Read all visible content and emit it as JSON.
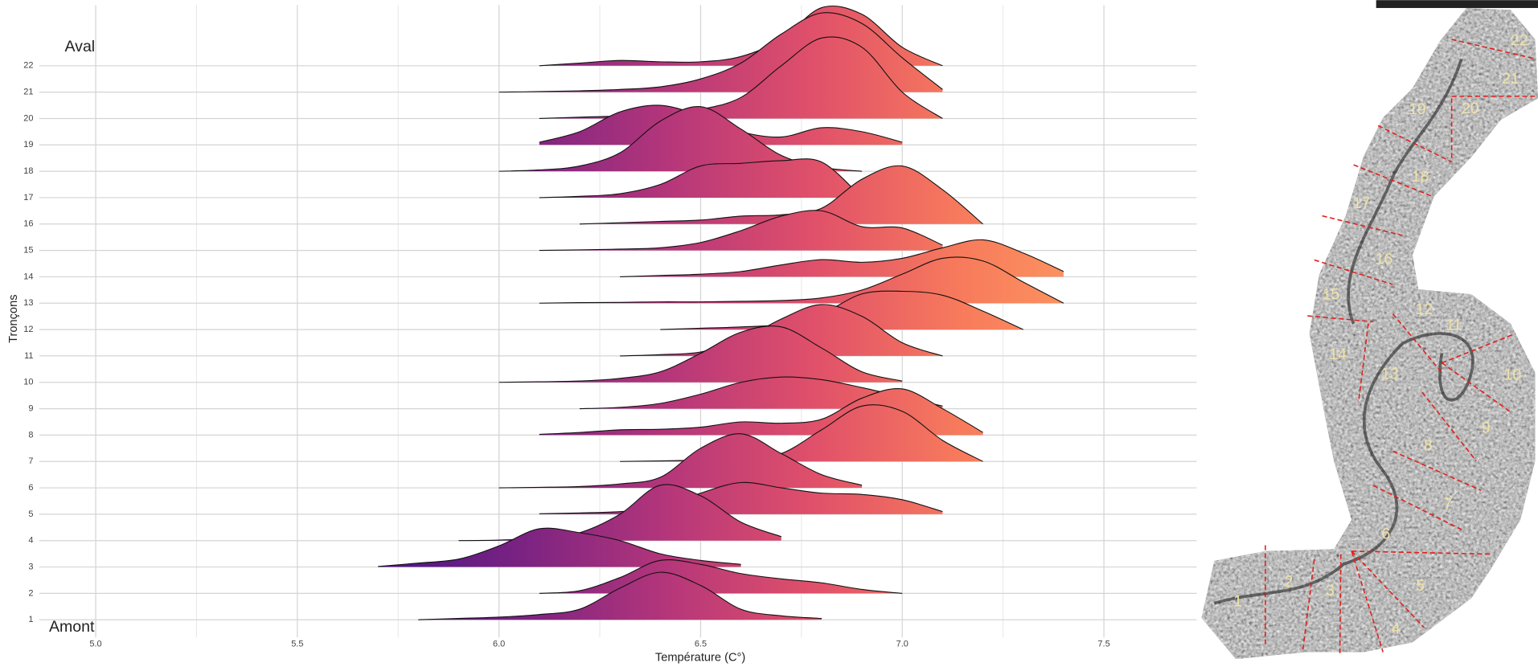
{
  "chart_data": {
    "type": "ridgeline",
    "x_label": "Température (C°)",
    "y_label": "Tronçons",
    "top_annotation": "Aval",
    "bottom_annotation": "Amont",
    "categories": [
      "1",
      "2",
      "3",
      "4",
      "5",
      "6",
      "7",
      "8",
      "9",
      "10",
      "11",
      "12",
      "13",
      "14",
      "15",
      "16",
      "17",
      "18",
      "19",
      "20",
      "21",
      "22"
    ],
    "x": [
      5.7,
      5.8,
      5.9,
      6.0,
      6.1,
      6.2,
      6.3,
      6.4,
      6.5,
      6.6,
      6.7,
      6.8,
      6.9,
      7.0,
      7.1,
      7.2,
      7.3,
      7.4,
      7.5
    ],
    "ridges": [
      [
        null,
        0,
        0.05,
        0.1,
        0.2,
        0.4,
        1.2,
        1.8,
        1.3,
        0.4,
        0.15,
        0.05,
        null,
        null,
        null,
        null,
        null,
        null,
        null
      ],
      [
        null,
        null,
        null,
        null,
        0,
        0.1,
        0.6,
        1.25,
        1.1,
        0.75,
        0.55,
        0.4,
        0.15,
        0,
        null,
        null,
        null,
        null,
        null
      ],
      [
        0.02,
        0.15,
        0.3,
        0.8,
        1.45,
        1.3,
        1.0,
        0.5,
        0.25,
        0.1,
        null,
        null,
        null,
        null,
        null,
        null,
        null,
        null,
        null
      ],
      [
        null,
        null,
        0,
        0.02,
        0.1,
        0.3,
        1.0,
        2.1,
        1.7,
        0.7,
        0.15,
        null,
        null,
        null,
        null,
        null,
        null,
        null,
        null
      ],
      [
        null,
        null,
        null,
        null,
        0.02,
        0.05,
        0.1,
        0.25,
        0.8,
        1.2,
        1.0,
        0.8,
        0.75,
        0.55,
        0.1,
        null,
        null,
        null,
        null
      ],
      [
        null,
        null,
        null,
        0,
        0.02,
        0.05,
        0.15,
        0.4,
        1.5,
        2.05,
        1.3,
        0.5,
        0.1,
        null,
        null,
        null,
        null,
        null,
        null
      ],
      [
        null,
        null,
        null,
        null,
        null,
        null,
        0,
        0.02,
        0.05,
        0.1,
        0.3,
        1.2,
        2.1,
        1.9,
        0.8,
        0,
        null,
        null,
        null
      ],
      [
        null,
        null,
        null,
        null,
        0.03,
        0.1,
        0.2,
        0.22,
        0.3,
        0.5,
        0.45,
        0.6,
        1.4,
        1.75,
        1.0,
        0.1,
        null,
        null,
        null
      ],
      [
        null,
        null,
        null,
        null,
        null,
        0,
        0.05,
        0.2,
        0.55,
        1.0,
        1.2,
        1.1,
        0.8,
        0.45,
        0.1,
        null,
        null,
        null,
        null
      ],
      [
        null,
        null,
        null,
        0,
        0.02,
        0.05,
        0.15,
        0.4,
        1.1,
        1.9,
        2.1,
        1.3,
        0.4,
        0.05,
        null,
        null,
        null,
        null,
        null
      ],
      [
        null,
        null,
        null,
        null,
        null,
        null,
        0,
        0.05,
        0.15,
        0.6,
        1.4,
        1.95,
        1.5,
        0.5,
        0,
        null,
        null,
        null,
        null
      ],
      [
        null,
        null,
        null,
        null,
        null,
        null,
        null,
        0,
        0.05,
        0.1,
        0.2,
        0.6,
        1.35,
        1.45,
        1.3,
        0.7,
        0,
        null,
        null
      ],
      [
        null,
        null,
        null,
        null,
        0,
        0.02,
        0.03,
        0.05,
        0.05,
        0.07,
        0.1,
        0.2,
        0.5,
        1.1,
        1.7,
        1.6,
        0.8,
        0,
        null
      ],
      [
        null,
        null,
        null,
        null,
        null,
        null,
        0,
        0.05,
        0.1,
        0.2,
        0.45,
        0.65,
        0.55,
        0.7,
        1.1,
        1.4,
        0.9,
        0.2,
        null
      ],
      [
        null,
        null,
        null,
        null,
        0,
        0.02,
        0.05,
        0.1,
        0.3,
        0.75,
        1.3,
        1.5,
        0.9,
        0.85,
        0.2,
        null,
        null,
        null,
        null
      ],
      [
        null,
        null,
        null,
        null,
        null,
        0,
        0.05,
        0.1,
        0.15,
        0.3,
        0.35,
        0.6,
        1.7,
        2.2,
        1.3,
        0,
        null,
        null,
        null
      ],
      [
        null,
        null,
        null,
        null,
        0,
        0.05,
        0.15,
        0.5,
        1.2,
        1.3,
        1.4,
        1.35,
        0,
        null,
        null,
        null,
        null,
        null,
        null
      ],
      [
        null,
        null,
        null,
        0,
        0.05,
        0.2,
        0.7,
        1.9,
        2.45,
        1.6,
        0.6,
        0.15,
        0,
        null,
        null,
        null,
        null,
        null,
        null
      ],
      [
        null,
        null,
        null,
        null,
        0.1,
        0.5,
        1.25,
        1.5,
        1.1,
        0.5,
        0.3,
        0.65,
        0.5,
        0.1,
        null,
        null,
        null,
        null,
        null
      ],
      [
        null,
        null,
        null,
        null,
        0,
        0.05,
        0.1,
        0.2,
        0.35,
        0.8,
        2.0,
        3.05,
        2.7,
        1.0,
        0,
        null,
        null,
        null,
        null
      ],
      [
        null,
        null,
        null,
        0,
        0.02,
        0.05,
        0.1,
        0.2,
        0.5,
        1.1,
        2.2,
        3.0,
        2.6,
        1.3,
        0.1,
        null,
        null,
        null,
        null
      ],
      [
        null,
        null,
        null,
        null,
        0,
        0.1,
        0.2,
        0.15,
        0.15,
        0.35,
        1.0,
        2.2,
        1.95,
        0.7,
        0,
        null,
        null,
        null,
        null
      ]
    ],
    "fill_colors": [
      "#4a1486",
      "#7b2382",
      "#b5367a",
      "#e0506a",
      "#f77a5c",
      "#fd9a5f"
    ],
    "xlim": [
      4.86,
      7.73
    ],
    "ylim": [
      0.33,
      24.3
    ],
    "xticks": [
      {
        "value": 5,
        "label": "5.0"
      },
      5.5,
      {
        "value": 6,
        "label": "6.0"
      },
      6.5,
      {
        "value": 7,
        "label": "7.0"
      },
      7.5
    ],
    "x_minor_ticks": [
      5.25,
      5.75,
      6.25,
      6.75,
      7.25
    ],
    "grid": true
  },
  "map": {
    "labels": [
      "1",
      "2",
      "3",
      "4",
      "5",
      "6",
      "7",
      "8",
      "9",
      "10",
      "11",
      "12",
      "13",
      "14",
      "15",
      "16",
      "17",
      "18",
      "19",
      "20",
      "21",
      "22"
    ]
  }
}
